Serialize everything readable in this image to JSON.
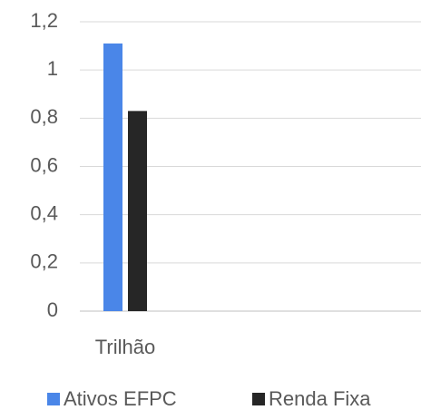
{
  "chart_data": {
    "type": "bar",
    "categories": [
      "Trilhão"
    ],
    "series": [
      {
        "name": "Ativos EFPC",
        "color": "#4a86e8",
        "values": [
          1.11
        ]
      },
      {
        "name": "Renda Fixa",
        "color": "#262626",
        "values": [
          0.83
        ]
      }
    ],
    "ylim": [
      0,
      1.2
    ],
    "yticks": [
      0,
      {
        "value": 0.2,
        "label": "0,2"
      },
      {
        "value": 0.4,
        "label": "0,4"
      },
      {
        "value": 0.6,
        "label": "0,6"
      },
      {
        "value": 0.8,
        "label": "0,8"
      },
      1,
      {
        "value": 1.2,
        "label": "1,2"
      }
    ],
    "grid": true,
    "legend": "bottom"
  }
}
